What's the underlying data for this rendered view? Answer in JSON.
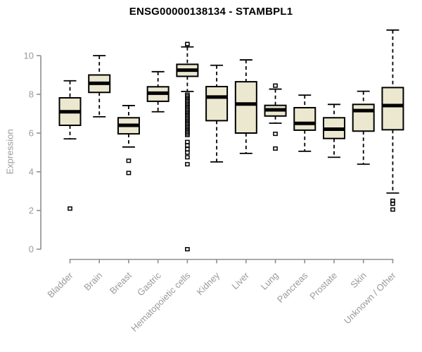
{
  "title": "ENSG00000138134 - STAMBPL1",
  "chart_data": {
    "type": "boxplot",
    "title": "ENSG00000138134 - STAMBPL1",
    "xlabel": "",
    "ylabel": "Expression",
    "ylim": [
      0,
      11.5
    ],
    "yticks": [
      "0",
      "2",
      "4",
      "6",
      "8",
      "10"
    ],
    "ytick_values": [
      0,
      2,
      4,
      6,
      8,
      10
    ],
    "grid": false,
    "legend": "none",
    "colors": {
      "box_fill": "#ece8d0",
      "box_stroke": "#000000",
      "median": "#000000",
      "whisker": "#000000",
      "axis": "#8f8f8f",
      "tick_label": "#9a9a9a",
      "title": "#000000"
    },
    "categories": [
      "Bladder",
      "Brain",
      "Breast",
      "Gastric",
      "Hematopoietic cells",
      "Kidney",
      "Liver",
      "Lung",
      "Pancreas",
      "Prostate",
      "Skin",
      "Unknown / Other"
    ],
    "series": [
      {
        "category": "Bladder",
        "whisker_low": 5.7,
        "q1": 6.4,
        "median": 7.1,
        "q3": 7.82,
        "whisker_high": 8.7,
        "outliers": [
          2.1
        ]
      },
      {
        "category": "Brain",
        "whisker_low": 6.84,
        "q1": 8.1,
        "median": 8.57,
        "q3": 9.0,
        "whisker_high": 10.0,
        "outliers": []
      },
      {
        "category": "Breast",
        "whisker_low": 5.28,
        "q1": 5.96,
        "median": 6.4,
        "q3": 6.79,
        "whisker_high": 7.42,
        "outliers": [
          4.57,
          3.94
        ]
      },
      {
        "category": "Gastric",
        "whisker_low": 7.1,
        "q1": 7.64,
        "median": 8.06,
        "q3": 8.39,
        "whisker_high": 9.17,
        "outliers": []
      },
      {
        "category": "Hematopoietic cells",
        "whisker_low": 8.15,
        "q1": 8.93,
        "median": 9.25,
        "q3": 9.55,
        "whisker_high": 10.45,
        "outliers": [
          10.6,
          7.98,
          7.9,
          7.82,
          7.74,
          7.66,
          7.58,
          7.5,
          7.42,
          7.34,
          7.26,
          7.18,
          7.1,
          7.02,
          6.94,
          6.86,
          6.78,
          6.7,
          6.62,
          6.54,
          6.46,
          6.38,
          6.3,
          6.22,
          6.14,
          6.06,
          5.98,
          5.9,
          5.54,
          5.36,
          5.17,
          4.99,
          4.75,
          4.39,
          0.0
        ]
      },
      {
        "category": "Kidney",
        "whisker_low": 4.51,
        "q1": 6.64,
        "median": 7.86,
        "q3": 8.4,
        "whisker_high": 9.5,
        "outliers": []
      },
      {
        "category": "Liver",
        "whisker_low": 4.95,
        "q1": 6.0,
        "median": 7.5,
        "q3": 8.65,
        "whisker_high": 9.78,
        "outliers": []
      },
      {
        "category": "Lung",
        "whisker_low": 6.51,
        "q1": 6.88,
        "median": 7.2,
        "q3": 7.43,
        "whisker_high": 8.27,
        "outliers": [
          8.45,
          5.96,
          5.2
        ]
      },
      {
        "category": "Pancreas",
        "whisker_low": 5.06,
        "q1": 6.15,
        "median": 6.5,
        "q3": 7.31,
        "whisker_high": 7.96,
        "outliers": []
      },
      {
        "category": "Prostate",
        "whisker_low": 4.75,
        "q1": 5.72,
        "median": 6.2,
        "q3": 6.79,
        "whisker_high": 7.48,
        "outliers": []
      },
      {
        "category": "Skin",
        "whisker_low": 4.39,
        "q1": 6.1,
        "median": 7.16,
        "q3": 7.48,
        "whisker_high": 8.16,
        "outliers": []
      },
      {
        "category": "Unknown / Other",
        "whisker_low": 2.9,
        "q1": 6.17,
        "median": 7.42,
        "q3": 8.35,
        "whisker_high": 11.32,
        "outliers": [
          2.5,
          2.35,
          2.05
        ]
      }
    ]
  }
}
